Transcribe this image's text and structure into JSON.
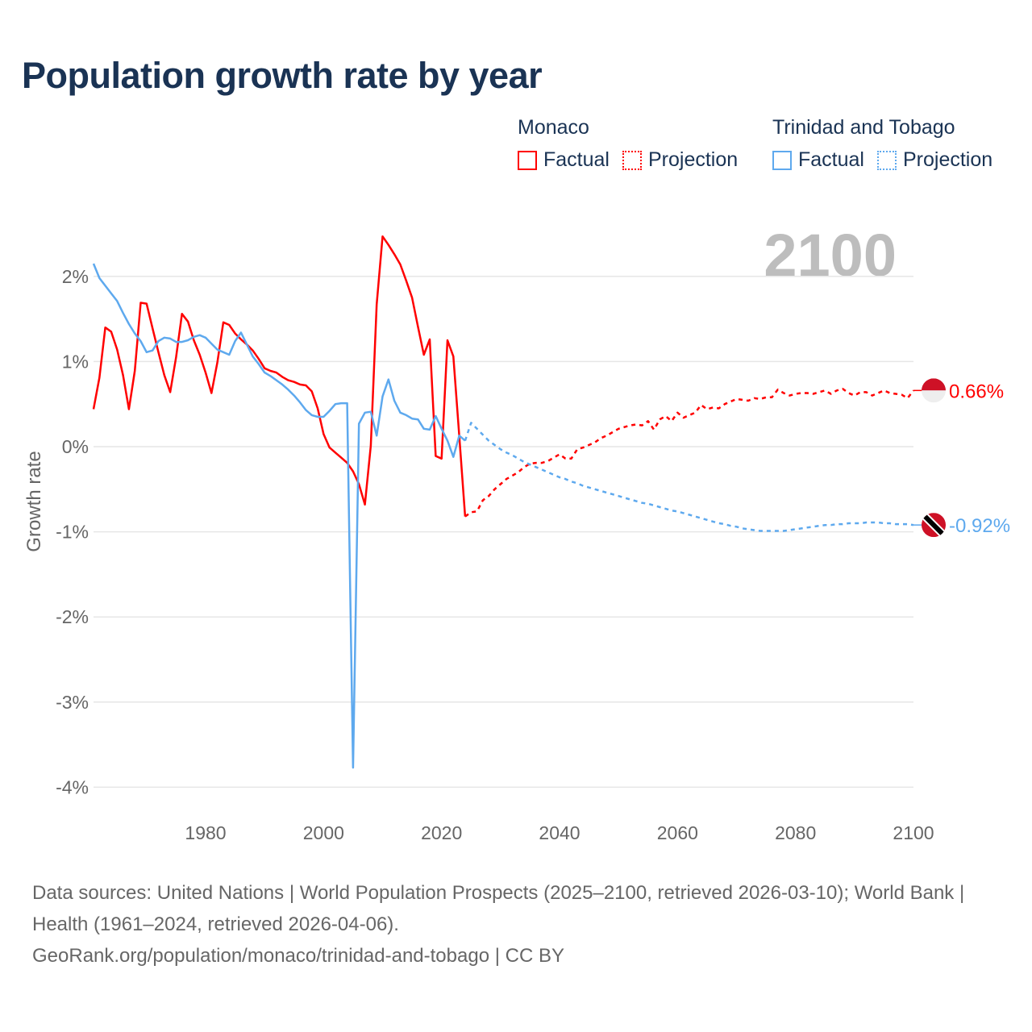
{
  "title": "Population growth rate by year",
  "legend": {
    "groups": [
      {
        "name": "Monaco",
        "factual": "Factual",
        "projection": "Projection",
        "color": "#ff0000"
      },
      {
        "name": "Trinidad and Tobago",
        "factual": "Factual",
        "projection": "Projection",
        "color": "#5ea9ee"
      }
    ]
  },
  "current_year_label": "2100",
  "footer": {
    "sources": "Data sources: United Nations | World Population Prospects (2025–2100, retrieved 2026-03-10); World Bank | Health (1961–2024, retrieved 2026-04-06).",
    "credit": "GeoRank.org/population/monaco/trinidad-and-tobago | CC BY"
  },
  "chart_data": {
    "type": "line",
    "title": "Population growth rate by year",
    "xlabel": "",
    "ylabel": "Growth rate",
    "xlim": [
      1961,
      2100
    ],
    "ylim": [
      -4.3,
      2.6
    ],
    "xticks": [
      1980,
      2000,
      2020,
      2040,
      2060,
      2080,
      2100
    ],
    "xtick_labels": [
      "1980",
      "2000",
      "2020",
      "2040",
      "2060",
      "2080",
      "2100"
    ],
    "yticks": [
      2,
      1,
      0,
      -1,
      -2,
      -3,
      -4
    ],
    "ytick_labels": [
      "2%",
      "1%",
      "0%",
      "-1%",
      "-2%",
      "-3%",
      "-4%"
    ],
    "grid": true,
    "legend_position": "top-right",
    "series": [
      {
        "name": "Monaco Factual",
        "color": "#ff0000",
        "dashed": false,
        "start_year": 1961,
        "values": [
          0.44,
          0.81,
          1.4,
          1.35,
          1.14,
          0.84,
          0.44,
          0.89,
          1.69,
          1.68,
          1.39,
          1.11,
          0.84,
          0.64,
          1.05,
          1.56,
          1.47,
          1.25,
          1.08,
          0.87,
          0.63,
          0.99,
          1.46,
          1.43,
          1.33,
          1.26,
          1.2,
          1.13,
          1.03,
          0.92,
          0.89,
          0.87,
          0.82,
          0.78,
          0.76,
          0.73,
          0.72,
          0.65,
          0.45,
          0.15,
          -0.01,
          -0.07,
          -0.13,
          -0.19,
          -0.29,
          -0.44,
          -0.68,
          0.01,
          1.67,
          2.47,
          2.37,
          2.26,
          2.14,
          1.95,
          1.75,
          1.41,
          1.08,
          1.26,
          -0.11,
          -0.14,
          1.25,
          1.06,
          0.13,
          -0.82
        ]
      },
      {
        "name": "Monaco Projection",
        "color": "#ff0000",
        "dashed": true,
        "start_year": 2024,
        "values": [
          -0.82,
          -0.77,
          -0.76,
          -0.63,
          -0.58,
          -0.5,
          -0.44,
          -0.38,
          -0.34,
          -0.3,
          -0.24,
          -0.2,
          -0.19,
          -0.19,
          -0.17,
          -0.13,
          -0.09,
          -0.14,
          -0.14,
          -0.03,
          -0.01,
          0.02,
          0.05,
          0.1,
          0.13,
          0.17,
          0.21,
          0.23,
          0.25,
          0.26,
          0.25,
          0.3,
          0.2,
          0.32,
          0.36,
          0.3,
          0.4,
          0.34,
          0.37,
          0.4,
          0.49,
          0.44,
          0.46,
          0.45,
          0.5,
          0.53,
          0.56,
          0.55,
          0.54,
          0.57,
          0.56,
          0.58,
          0.58,
          0.67,
          0.63,
          0.6,
          0.62,
          0.63,
          0.63,
          0.62,
          0.64,
          0.66,
          0.62,
          0.66,
          0.68,
          0.63,
          0.6,
          0.64,
          0.64,
          0.6,
          0.63,
          0.66,
          0.63,
          0.62,
          0.61,
          0.57,
          0.66
        ]
      },
      {
        "name": "Trinidad and Tobago Factual",
        "color": "#5ea9ee",
        "dashed": false,
        "start_year": 1961,
        "values": [
          2.15,
          1.98,
          1.89,
          1.8,
          1.71,
          1.57,
          1.44,
          1.33,
          1.24,
          1.11,
          1.13,
          1.24,
          1.28,
          1.27,
          1.23,
          1.23,
          1.25,
          1.29,
          1.31,
          1.28,
          1.21,
          1.14,
          1.11,
          1.08,
          1.24,
          1.34,
          1.2,
          1.06,
          0.97,
          0.87,
          0.83,
          0.78,
          0.73,
          0.67,
          0.6,
          0.52,
          0.43,
          0.37,
          0.35,
          0.35,
          0.42,
          0.5,
          0.51,
          0.51,
          -3.77,
          0.27,
          0.4,
          0.41,
          0.13,
          0.59,
          0.79,
          0.54,
          0.4,
          0.37,
          0.33,
          0.32,
          0.21,
          0.2,
          0.36,
          0.21,
          0.07,
          -0.12,
          0.13,
          0.07
        ]
      },
      {
        "name": "Trinidad and Tobago Projection",
        "color": "#5ea9ee",
        "dashed": true,
        "start_year": 2024,
        "values": [
          0.07,
          0.28,
          0.21,
          0.14,
          0.07,
          0.02,
          -0.03,
          -0.07,
          -0.1,
          -0.14,
          -0.18,
          -0.21,
          -0.24,
          -0.27,
          -0.3,
          -0.33,
          -0.36,
          -0.38,
          -0.41,
          -0.43,
          -0.46,
          -0.48,
          -0.5,
          -0.52,
          -0.54,
          -0.56,
          -0.58,
          -0.6,
          -0.62,
          -0.64,
          -0.66,
          -0.67,
          -0.69,
          -0.71,
          -0.73,
          -0.75,
          -0.76,
          -0.78,
          -0.8,
          -0.82,
          -0.84,
          -0.86,
          -0.88,
          -0.9,
          -0.91,
          -0.93,
          -0.94,
          -0.96,
          -0.97,
          -0.98,
          -0.99,
          -0.99,
          -0.99,
          -0.99,
          -0.99,
          -0.98,
          -0.97,
          -0.96,
          -0.95,
          -0.94,
          -0.93,
          -0.92,
          -0.92,
          -0.91,
          -0.91,
          -0.9,
          -0.9,
          -0.9,
          -0.89,
          -0.89,
          -0.89,
          -0.9,
          -0.9,
          -0.91,
          -0.91,
          -0.91,
          -0.92
        ]
      }
    ],
    "end_labels": [
      {
        "series": "Monaco",
        "value": 0.66,
        "text": "0.66%",
        "color": "#ff0000",
        "flag": "monaco-flag"
      },
      {
        "series": "Trinidad and Tobago",
        "value": -0.92,
        "text": "-0.92%",
        "color": "#5ea9ee",
        "flag": "trinidad-and-tobago-flag"
      }
    ]
  }
}
